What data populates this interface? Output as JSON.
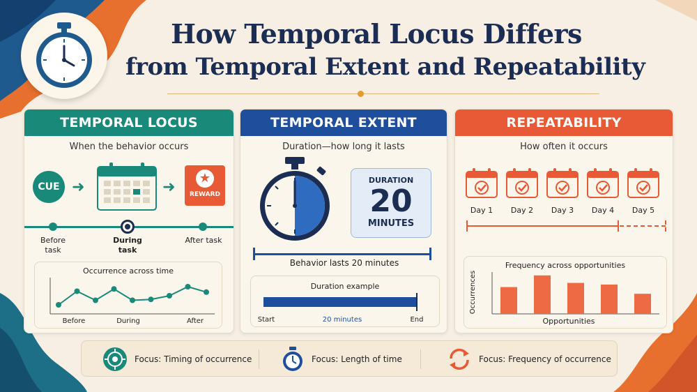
{
  "title": {
    "line1": "How Temporal Locus Differs",
    "line2": "from Temporal Extent and Repeatability"
  },
  "header_icon": "stopwatch-icon",
  "colors": {
    "teal": "#198a7a",
    "blue": "#1f4f9c",
    "orange": "#e75a35",
    "navy": "#1b2d52",
    "background": "#f7efe3"
  },
  "panels": {
    "locus": {
      "heading": "TEMPORAL LOCUS",
      "subtitle": "When the behavior occurs",
      "cue": "CUE",
      "reward": "REWARD",
      "timeline": [
        {
          "label": "Before task"
        },
        {
          "label": "During task"
        },
        {
          "label": "After task"
        }
      ],
      "chart_title": "Occurrence across time",
      "chart_x_labels": [
        "Before",
        "During",
        "After"
      ]
    },
    "extent": {
      "heading": "TEMPORAL EXTENT",
      "subtitle": "Duration—how long it lasts",
      "duration_card": {
        "label": "DURATION",
        "value": "20",
        "unit": "MINUTES"
      },
      "caption": "Behavior lasts 20 minutes",
      "example_title": "Duration example",
      "example_start": "Start",
      "example_middle": "20 minutes",
      "example_end": "End"
    },
    "repeat": {
      "heading": "REPEATABILITY",
      "subtitle": "How often it occurs",
      "days": [
        "Day 1",
        "Day 2",
        "Day 3",
        "Day 4",
        "Day 5"
      ],
      "chart_title": "Frequency across opportunities",
      "ylabel": "Occurrences",
      "xlabel": "Opportunities"
    }
  },
  "footer": {
    "items": [
      {
        "label": "Focus: Timing of occurrence",
        "icon": "target-icon"
      },
      {
        "label": "Focus: Length of time",
        "icon": "stopwatch-icon"
      },
      {
        "label": "Focus: Frequency of occurrence",
        "icon": "cycle-arrows-icon"
      }
    ]
  },
  "chart_data": [
    {
      "type": "line",
      "title": "Occurrence across time",
      "x_tick_labels": [
        "Before",
        "During",
        "After"
      ],
      "series": [
        {
          "values": [
            2,
            5,
            3,
            5.5,
            3,
            3.2,
            4,
            6,
            4.8
          ]
        }
      ],
      "ylim": [
        0,
        8
      ]
    },
    {
      "type": "bar",
      "title": "Frequency across opportunities",
      "xlabel": "Opportunities",
      "ylabel": "Occurrences",
      "values": [
        3.2,
        4.6,
        3.7,
        3.5,
        2.4
      ],
      "ylim": [
        0,
        5
      ]
    }
  ]
}
